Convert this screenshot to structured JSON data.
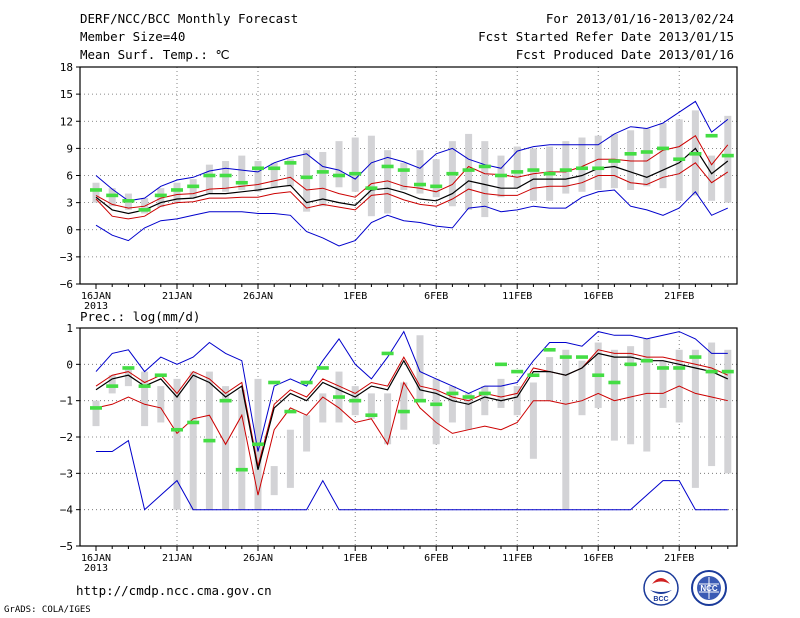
{
  "header": {
    "title": "DERF/NCC/BCC Monthly Forecast",
    "member_size": "Member Size=40",
    "variable1": "Mean Surf. Temp.: ℃",
    "period": "For 2013/01/16-2013/02/24",
    "refer_date": "Fcst Started Refer Date 2013/01/15",
    "produced_date": "Fcst Produced Date 2013/01/16"
  },
  "footer": {
    "url": "http://cmdp.ncc.cma.gov.cn",
    "credit": "GrADS: COLA/IGES",
    "logo1_text": "BCC",
    "logo2_text": "NCC"
  },
  "colors": {
    "envelope": "#0000cc",
    "spread": "#cc0000",
    "mean": "#000000",
    "observed": "#44dd44",
    "bar": "#d3d3d6"
  },
  "chart_data": [
    {
      "type": "line",
      "title": "Mean Surf. Temp.: ℃",
      "xlabel_ticks": [
        "16JAN",
        "21JAN",
        "26JAN",
        "1FEB",
        "6FEB",
        "11FEB",
        "16FEB",
        "21FEB"
      ],
      "xlabel_year": "2013",
      "ylim": [
        -6,
        18
      ],
      "yticks": [
        -6,
        -3,
        0,
        3,
        6,
        9,
        12,
        15,
        18
      ],
      "ytick_labels": [
        "−6",
        "−3",
        "0",
        "3",
        "6",
        "9",
        "12",
        "15",
        "18"
      ],
      "days": 40,
      "bar_low": [
        3,
        2.6,
        2.2,
        1.8,
        2.5,
        3,
        3.5,
        4,
        4.2,
        4.4,
        4.2,
        4.6,
        4.8,
        2,
        2.6,
        4.7,
        4.2,
        1.5,
        1.8,
        4.4,
        4,
        3.6,
        2.6,
        2.2,
        1.4,
        3.6,
        4.6,
        3.2,
        3.2,
        4,
        4.2,
        4.4,
        4.6,
        4.4,
        4.8,
        4.6,
        3.2,
        3.8,
        3.2,
        3
      ],
      "bar_high": [
        5.2,
        4.6,
        4,
        3.5,
        4.6,
        5.2,
        5.6,
        7.2,
        7.6,
        8.2,
        7.6,
        7.4,
        7.8,
        8.8,
        8.6,
        9.8,
        10.2,
        10.4,
        8.8,
        7.4,
        8.8,
        7.8,
        9.8,
        10.6,
        9.8,
        8.2,
        9.2,
        9,
        9.2,
        9.8,
        10.2,
        10.4,
        10.6,
        11,
        11.2,
        11.8,
        12.2,
        13.2,
        8.2,
        12.6
      ],
      "series": [
        {
          "name": "ensemble max",
          "color_key": "envelope",
          "values": [
            6,
            4.5,
            3.2,
            3.5,
            4.8,
            5.5,
            5.8,
            6.5,
            6.8,
            6.6,
            6.4,
            7.4,
            8,
            8.4,
            7,
            6.6,
            5.6,
            7.4,
            8,
            7.5,
            6.8,
            8.4,
            9,
            7.8,
            7.2,
            6.8,
            8.7,
            9.2,
            9.4,
            9.4,
            9.4,
            9.4,
            10.6,
            11.4,
            11.2,
            11.8,
            13,
            14.2,
            10.8,
            12.2
          ]
        },
        {
          "name": "spread upper",
          "color_key": "spread",
          "values": [
            3.8,
            2.8,
            2.4,
            2.6,
            3.5,
            3.9,
            4,
            4.5,
            4.6,
            4.8,
            5,
            5.4,
            5.8,
            4.4,
            4.6,
            4,
            3.6,
            5.1,
            5.4,
            4.8,
            4.6,
            4.2,
            5,
            7,
            6.2,
            6.1,
            5.8,
            6.2,
            6.4,
            6.4,
            7,
            7.8,
            7.8,
            7.6,
            7.6,
            8.8,
            9.2,
            10.4,
            7.2,
            9.4
          ]
        },
        {
          "name": "ensemble mean",
          "color_key": "mean",
          "values": [
            3.6,
            2.2,
            1.8,
            2.2,
            3,
            3.4,
            3.5,
            4,
            4,
            4.2,
            4.4,
            4.7,
            4.9,
            3,
            3.4,
            3,
            2.7,
            4.4,
            4.6,
            4.1,
            3.4,
            3.2,
            4,
            5.4,
            5,
            4.6,
            4.6,
            5.6,
            5.6,
            5.6,
            6,
            6.8,
            7,
            6.4,
            5.8,
            6.6,
            7.4,
            9,
            6.2,
            7.6
          ]
        },
        {
          "name": "spread lower",
          "color_key": "spread",
          "values": [
            3.4,
            1.5,
            1.2,
            1.5,
            2.6,
            3,
            3.1,
            3.5,
            3.5,
            3.6,
            3.6,
            4,
            4.2,
            2.4,
            2.8,
            2.5,
            2.2,
            3.8,
            4,
            3.3,
            2.8,
            2.6,
            3.4,
            4.5,
            4,
            3.8,
            3.8,
            4.6,
            4.8,
            4.8,
            5.2,
            6,
            6,
            5.2,
            5,
            5.8,
            6.2,
            7.4,
            5.2,
            6.4
          ]
        },
        {
          "name": "ensemble min",
          "color_key": "envelope",
          "values": [
            0.5,
            -0.6,
            -1.2,
            0.2,
            1,
            1.2,
            1.6,
            2,
            2,
            2,
            1.8,
            1.8,
            1.6,
            -0.2,
            -0.9,
            -1.8,
            -1.2,
            0.8,
            1.6,
            1,
            0.8,
            0.4,
            0.2,
            2.4,
            2.6,
            2,
            2.2,
            2.6,
            2.4,
            2.4,
            3.6,
            4.2,
            4.4,
            2.6,
            2.2,
            1.6,
            2.4,
            4.2,
            1.6,
            2.4
          ]
        },
        {
          "name": "observed",
          "color_key": "observed",
          "values": [
            4.4,
            3.8,
            3.2,
            2.2,
            3.8,
            4.4,
            4.8,
            6,
            6,
            5.2,
            6.8,
            6.8,
            7.4,
            5.8,
            6.4,
            6,
            6.2,
            4.6,
            7,
            6.6,
            5,
            4.8,
            6.2,
            6.6,
            7,
            6,
            6.4,
            6.6,
            6.2,
            6.6,
            6.8,
            6.8,
            7.6,
            8.4,
            8.6,
            9,
            7.8,
            8.4,
            10.4,
            8.2
          ]
        }
      ]
    },
    {
      "type": "line",
      "title": "Prec.: log(mm/d)",
      "xlabel_ticks": [
        "16JAN",
        "21JAN",
        "26JAN",
        "1FEB",
        "6FEB",
        "11FEB",
        "16FEB",
        "21FEB"
      ],
      "xlabel_year": "2013",
      "ylim": [
        -5,
        1
      ],
      "yticks": [
        -5,
        -4,
        -3,
        -2,
        -1,
        0,
        1
      ],
      "ytick_labels": [
        "−5",
        "−4",
        "−3",
        "−2",
        "−1",
        "0",
        "1"
      ],
      "days": 40,
      "bar_low": [
        -1.7,
        -0.8,
        -0.6,
        -1.7,
        -1.6,
        -4,
        -4,
        -4,
        -4,
        -4,
        -4,
        -3.6,
        -3.4,
        -2.4,
        -1.6,
        -1.6,
        -1.4,
        -1.5,
        -2.2,
        -1.8,
        -1,
        -2.2,
        -1.6,
        -1.8,
        -1.4,
        -1.2,
        -1.4,
        -2.6,
        -1,
        -4,
        -1.4,
        -1.2,
        -2.1,
        -2.2,
        -2.4,
        -1.2,
        -1.6,
        -3.4,
        -2.8,
        -3
      ],
      "bar_high": [
        -1,
        -0.3,
        -0.1,
        -0.2,
        -0.6,
        -0.4,
        -0.2,
        -0.2,
        -0.6,
        -0.7,
        -0.4,
        -2.8,
        -1.8,
        -1.4,
        -0.8,
        -0.2,
        -0.6,
        -0.8,
        -0.8,
        -0.5,
        0.8,
        -0.4,
        -0.6,
        -0.8,
        -0.6,
        -0.4,
        -0.6,
        -0.5,
        0.2,
        0.4,
        0.1,
        0.6,
        0.4,
        0.5,
        0.7,
        0.1,
        0.4,
        0.4,
        0.6,
        0.4
      ],
      "series": [
        {
          "name": "ensemble max",
          "color_key": "envelope",
          "values": [
            -0.2,
            0.3,
            0.4,
            -0.2,
            0.2,
            0,
            0.2,
            0.6,
            0.3,
            0.1,
            -2.4,
            -0.6,
            -0.4,
            -0.6,
            0.1,
            0.7,
            0,
            -0.4,
            0.2,
            0.9,
            -0.2,
            -0.4,
            -0.6,
            -0.8,
            -0.6,
            -0.6,
            -0.5,
            0.1,
            0.6,
            0.6,
            0.5,
            0.9,
            0.8,
            0.8,
            0.7,
            0.8,
            0.9,
            0.7,
            0.3,
            0.3
          ]
        },
        {
          "name": "spread upper",
          "color_key": "spread",
          "values": [
            -0.6,
            -0.3,
            -0.2,
            -0.5,
            -0.3,
            -0.8,
            -0.2,
            -0.4,
            -0.8,
            -0.5,
            -2.8,
            -1.1,
            -0.7,
            -0.9,
            -0.4,
            -0.6,
            -0.8,
            -0.5,
            -0.6,
            0.2,
            -0.6,
            -0.7,
            -0.9,
            -1,
            -0.8,
            -0.9,
            -0.8,
            -0.1,
            -0.2,
            -0.3,
            -0.1,
            0.4,
            0.3,
            0.3,
            0.2,
            0.2,
            0.1,
            0,
            -0.1,
            -0.3
          ]
        },
        {
          "name": "ensemble mean",
          "color_key": "mean",
          "values": [
            -0.7,
            -0.4,
            -0.3,
            -0.6,
            -0.4,
            -0.9,
            -0.3,
            -0.5,
            -0.9,
            -0.6,
            -2.9,
            -1.2,
            -0.8,
            -1,
            -0.5,
            -0.7,
            -0.9,
            -0.6,
            -0.7,
            0.1,
            -0.7,
            -0.8,
            -1,
            -1.1,
            -0.9,
            -1,
            -0.9,
            -0.2,
            -0.2,
            -0.3,
            -0.1,
            0.3,
            0.2,
            0.2,
            0.1,
            0.1,
            0,
            -0.1,
            -0.2,
            -0.4
          ]
        },
        {
          "name": "spread lower",
          "color_key": "spread",
          "values": [
            -1.2,
            -1.1,
            -0.9,
            -1.1,
            -1.2,
            -1.9,
            -1.5,
            -1.4,
            -2.2,
            -1.4,
            -3.6,
            -1.8,
            -1.2,
            -1.4,
            -0.9,
            -1.2,
            -1.6,
            -1.5,
            -2.2,
            -0.5,
            -1.2,
            -1.6,
            -1.9,
            -1.8,
            -1.7,
            -1.8,
            -1.6,
            -1,
            -1,
            -1.1,
            -1,
            -0.8,
            -1,
            -0.9,
            -0.8,
            -0.8,
            -0.6,
            -0.8,
            -0.9,
            -1
          ]
        },
        {
          "name": "ensemble min",
          "color_key": "envelope",
          "values": [
            -2.4,
            -2.4,
            -2.1,
            -4,
            -3.6,
            -3.2,
            -4,
            -4,
            -4,
            -4,
            -4,
            -4,
            -4,
            -4,
            -3.2,
            -4,
            -4,
            -4,
            -4,
            -4,
            -4,
            -4,
            -4,
            -4,
            -4,
            -4,
            -4,
            -4,
            -4,
            -4,
            -4,
            -4,
            -4,
            -4,
            -3.6,
            -3.2,
            -3.2,
            -4,
            -4,
            -4
          ]
        },
        {
          "name": "observed",
          "color_key": "observed",
          "values": [
            -1.2,
            -0.6,
            -0.1,
            -0.6,
            -0.3,
            -1.8,
            -1.6,
            -2.1,
            -1,
            -2.9,
            -2.2,
            -0.5,
            -1.3,
            -0.5,
            -0.1,
            -0.9,
            -1,
            -1.4,
            0.3,
            -1.3,
            -1,
            -1.1,
            -0.8,
            -0.9,
            -0.8,
            0,
            -0.2,
            -0.3,
            0.4,
            0.2,
            0.2,
            -0.3,
            -0.5,
            0,
            0.1,
            -0.1,
            -0.1,
            0.2,
            -0.2,
            -0.2
          ]
        }
      ]
    }
  ]
}
